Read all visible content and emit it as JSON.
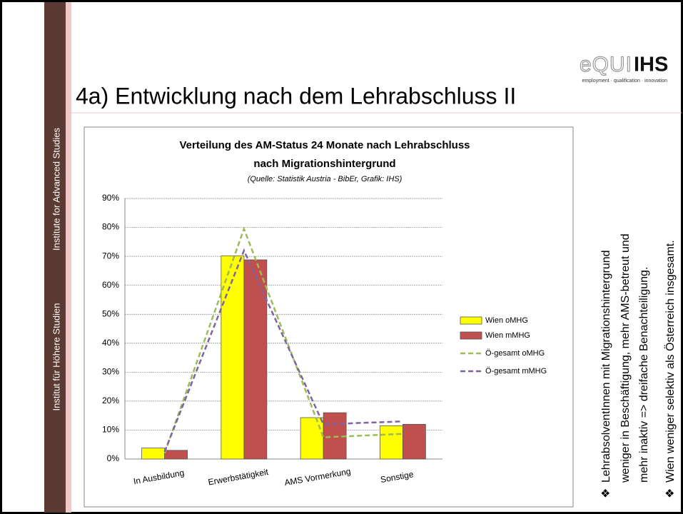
{
  "slide": {
    "sidebar": [
      "Institut für Höhere Studien",
      "Institute for Advanced Studies"
    ],
    "logo": {
      "brand": "eQUI",
      "ihs": "IHS",
      "tagline": "employment · qualification · innovation"
    },
    "title": "4a) Entwicklung nach dem Lehrabschluss II",
    "bullets": [
      {
        "marker": "❖",
        "lines": [
          "LehrabsolventInnen mit Migrationshintergrund",
          "weniger in Beschäftigung, mehr AMS-betreut und",
          "mehr inaktiv => dreifache Benachteiligung."
        ]
      },
      {
        "marker": "❖",
        "lines": [
          "Wien weniger selektiv als Österreich insgesamt."
        ]
      }
    ]
  },
  "chart_data": {
    "type": "bar",
    "title": "Verteilung des AM-Status 24 Monate nach Lehrabschluss",
    "title2": "nach Migrationshintergrund",
    "subtitle": "(Quelle: Statistik Austria - BibEr, Grafik: IHS)",
    "categories": [
      "In Ausbildung",
      "Erwerbstätigkeit",
      "AMS Vormerkung",
      "Sonstige"
    ],
    "series": [
      {
        "name": "Wien oMHG",
        "type": "bar",
        "color": "#ffff00",
        "values": [
          3.8,
          70.2,
          14.3,
          11.5
        ]
      },
      {
        "name": "Wien mMHG",
        "type": "bar",
        "color": "#c0504d",
        "values": [
          3.0,
          68.8,
          16.0,
          12.0
        ]
      },
      {
        "name": "Ö-gesamt oMHG",
        "type": "line",
        "color": "#9bbb59",
        "values": [
          2.0,
          79.5,
          7.5,
          8.7
        ]
      },
      {
        "name": "Ö-gesamt mMHG",
        "type": "line",
        "color": "#8064a2",
        "values": [
          2.5,
          72.0,
          12.0,
          13.0
        ]
      }
    ],
    "ylim": [
      0,
      90
    ],
    "yticks": [
      {
        "value": 0,
        "label": "0%"
      },
      {
        "value": 10,
        "label": "10%"
      },
      {
        "value": 20,
        "label": "20%"
      },
      {
        "value": 30,
        "label": "30%"
      },
      {
        "value": 40,
        "label": "40%"
      },
      {
        "value": 50,
        "label": "50%"
      },
      {
        "value": 60,
        "label": "60%"
      },
      {
        "value": 70,
        "label": "70%"
      },
      {
        "value": 80,
        "label": "80%"
      },
      {
        "value": 90,
        "label": "90%"
      }
    ],
    "grid": true,
    "legend": "right"
  }
}
